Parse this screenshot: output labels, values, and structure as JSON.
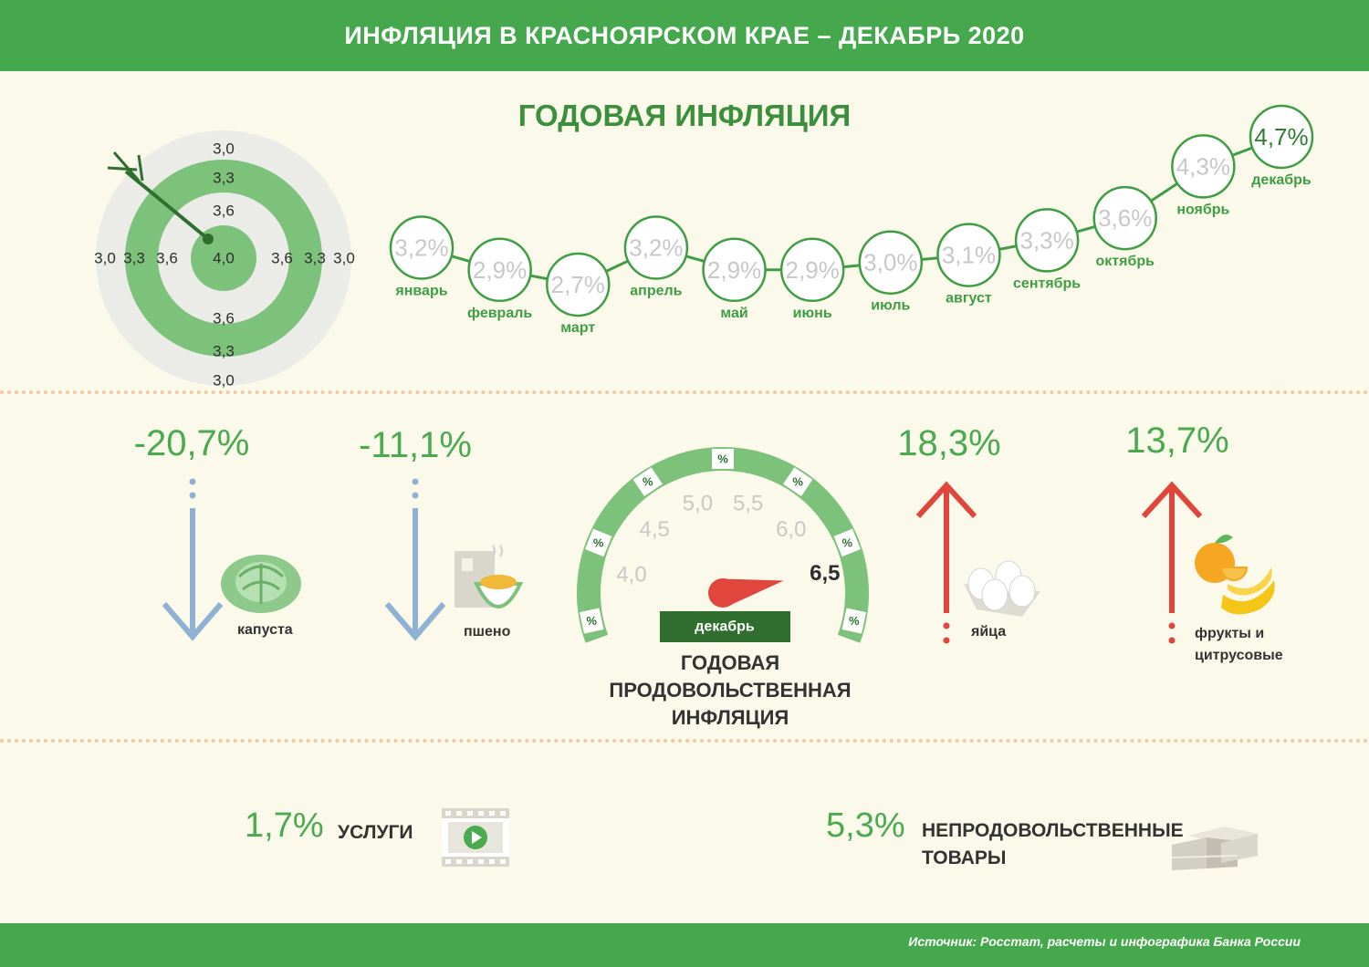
{
  "header": {
    "title": "ИНФЛЯЦИЯ В КРАСНОЯРСКОМ КРАЕ – ДЕКАБРЬ 2020"
  },
  "annual": {
    "title": "ГОДОВАЯ ИНФЛЯЦИЯ",
    "target": {
      "center": "4,0",
      "top": [
        "3,0",
        "3,3",
        "3,6"
      ],
      "bottom": [
        "3,6",
        "3,3",
        "3,0"
      ],
      "left": [
        "3,0",
        "3,3",
        "3,6"
      ],
      "right": [
        "3,6",
        "3,3",
        "3,0"
      ]
    }
  },
  "chart_data": {
    "type": "line",
    "title": "ГОДОВАЯ ИНФЛЯЦИЯ",
    "categories": [
      "январь",
      "февраль",
      "март",
      "апрель",
      "май",
      "июнь",
      "июль",
      "август",
      "сентябрь",
      "октябрь",
      "ноябрь",
      "декабрь"
    ],
    "values": [
      3.2,
      2.9,
      2.7,
      3.2,
      2.9,
      2.9,
      3.0,
      3.1,
      3.3,
      3.6,
      4.3,
      4.7
    ],
    "value_labels": [
      "3,2%",
      "2,9%",
      "2,7%",
      "3,2%",
      "2,9%",
      "2,9%",
      "3,0%",
      "3,1%",
      "3,3%",
      "3,6%",
      "4,3%",
      "4,7%"
    ],
    "highlight_index": 11,
    "colors": {
      "line": "#3f9e44",
      "bubble_text": "#c8c8c8",
      "highlight_text": "#2f7d33",
      "label": "#3f9e44"
    }
  },
  "food": {
    "items": [
      {
        "value": "-20,7%",
        "label": "капуста",
        "direction": "down",
        "icon": "cabbage-icon"
      },
      {
        "value": "-11,1%",
        "label": "пшено",
        "direction": "down",
        "icon": "millet-icon"
      },
      {
        "value": "18,3%",
        "label": "яйца",
        "direction": "up",
        "icon": "eggs-icon"
      },
      {
        "value": "13,7%",
        "label_lines": [
          "фрукты и",
          "цитрусовые"
        ],
        "direction": "up",
        "icon": "fruits-icon"
      }
    ],
    "gauge": {
      "value": 6.5,
      "value_label": "6,5",
      "month": "декабрь",
      "ticks": [
        "4,0",
        "4,5",
        "5,0",
        "5,5",
        "6,0"
      ],
      "pct_symbol": "%",
      "caption": [
        "ГОДОВАЯ",
        "ПРОДОВОЛЬСТВЕННАЯ",
        "ИНФЛЯЦИЯ"
      ]
    },
    "colors": {
      "down_arrow": "#8fb1d3",
      "up_arrow": "#e0463c",
      "gauge": "#7cc27b",
      "needle": "#e0463c"
    }
  },
  "bottom": {
    "services": {
      "value": "1,7%",
      "label": "УСЛУГИ",
      "icon": "video-icon"
    },
    "nonfood": {
      "value": "5,3%",
      "label_lines": [
        "НЕПРОДОВОЛЬСТВЕННЫЕ",
        "ТОВАРЫ"
      ],
      "icon": "boxes-icon"
    }
  },
  "footer": {
    "source": "Источник: Росстат, расчеты и инфографика Банка России"
  }
}
